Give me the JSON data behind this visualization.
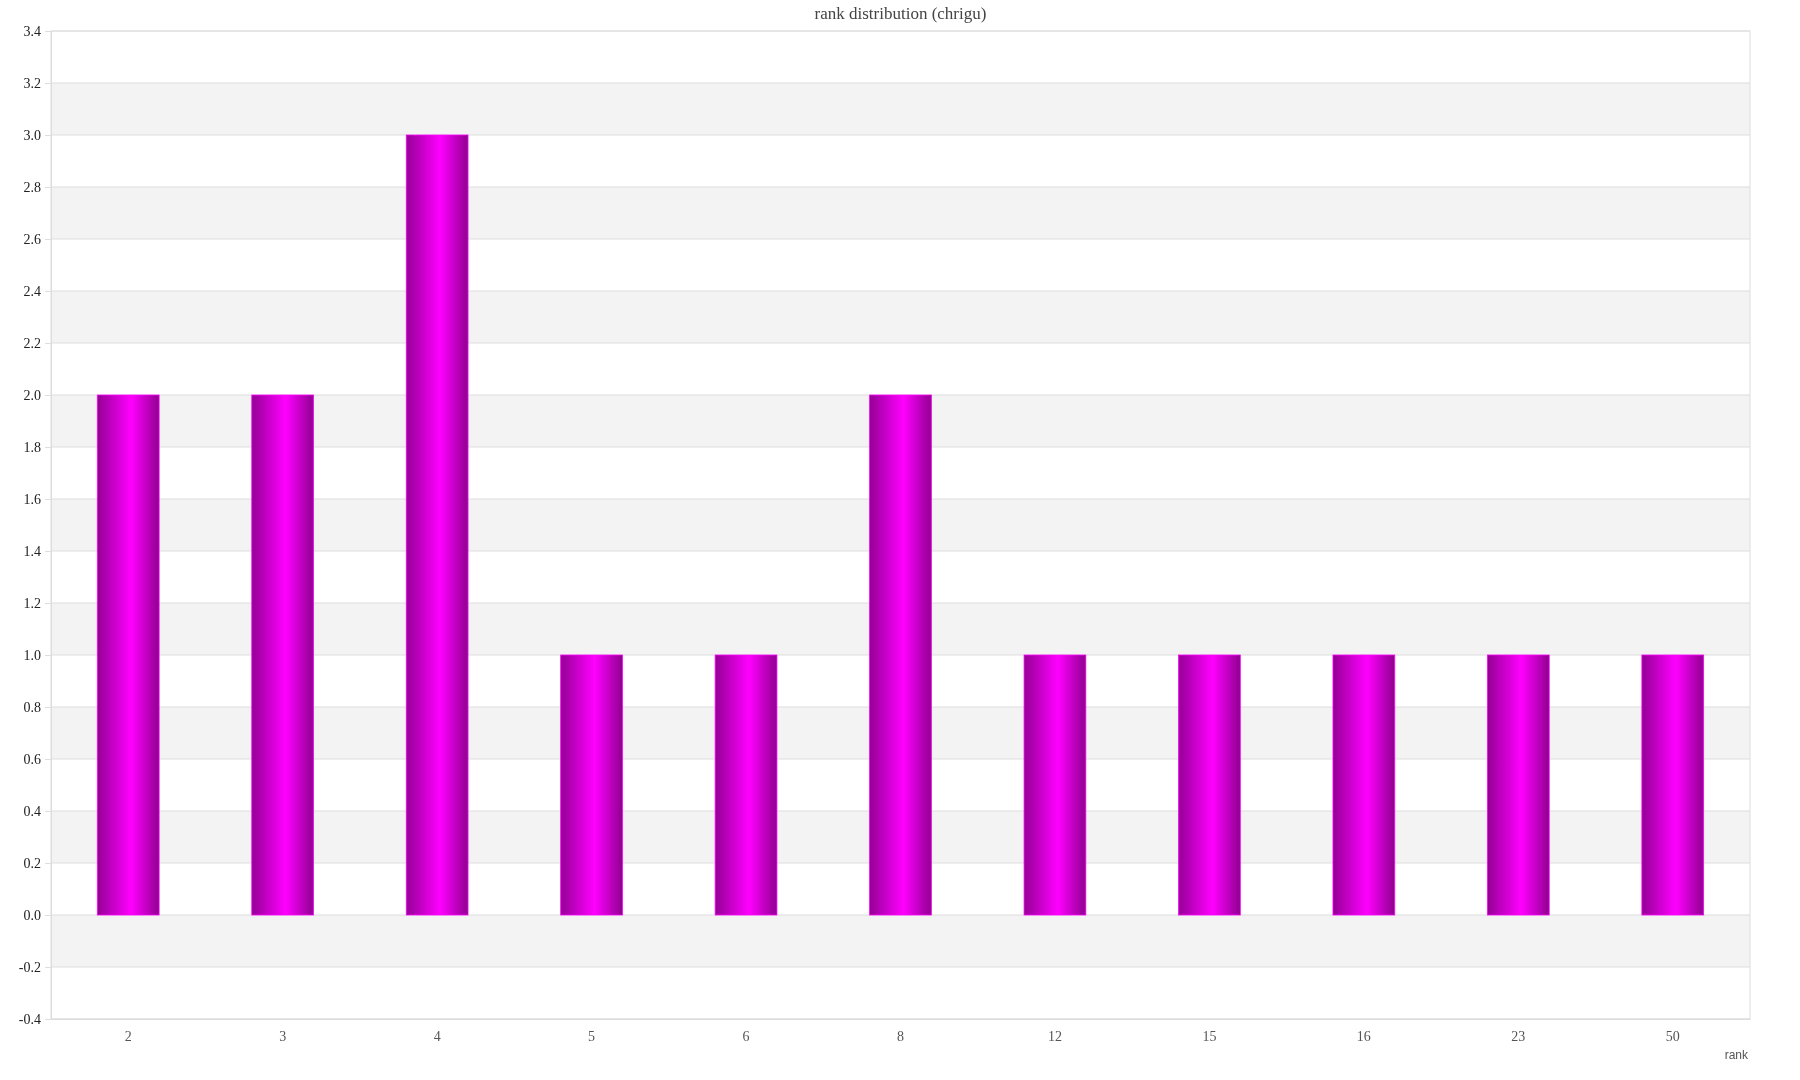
{
  "chart_data": {
    "type": "bar",
    "title": "rank distribution (chrigu)",
    "xlabel": "rank",
    "categories": [
      "2",
      "3",
      "4",
      "5",
      "6",
      "8",
      "12",
      "15",
      "16",
      "23",
      "50"
    ],
    "values": [
      2,
      2,
      3,
      1,
      1,
      2,
      1,
      1,
      1,
      1,
      1
    ],
    "color": "#ff00ff",
    "ylim": [
      -0.4,
      3.4
    ],
    "yticks": [
      -0.4,
      -0.2,
      {
        "value": 0,
        "label": "0.0"
      },
      0.2,
      0.4,
      0.6,
      0.8,
      {
        "value": 1,
        "label": "1.0"
      },
      1.2,
      1.4,
      1.6,
      1.8,
      {
        "value": 2,
        "label": "2.0"
      },
      2.2,
      2.4,
      2.6,
      2.8,
      {
        "value": 3,
        "label": "3.0"
      },
      3.2,
      3.4
    ],
    "grid": "y"
  }
}
